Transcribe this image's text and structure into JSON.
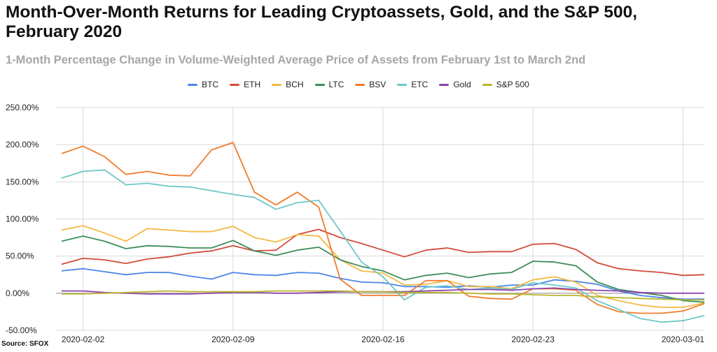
{
  "title": "Month-Over-Month Returns for Leading Cryptoassets, Gold, and the S&P 500, February 2020",
  "subtitle": "1-Month Percentage Change in Volume-Weighted Average Price of Assets from February 1st to March 2nd",
  "source": "Source: SFOX",
  "chart_data": {
    "type": "line",
    "title": "Month-Over-Month Returns for Leading Cryptoassets, Gold, and the S&P 500, February 2020",
    "subtitle": "1-Month Percentage Change in Volume-Weighted Average Price of Assets from February 1st to March 2nd",
    "x": [
      "2020-02-01",
      "2020-02-02",
      "2020-02-03",
      "2020-02-04",
      "2020-02-05",
      "2020-02-06",
      "2020-02-07",
      "2020-02-08",
      "2020-02-09",
      "2020-02-10",
      "2020-02-11",
      "2020-02-12",
      "2020-02-13",
      "2020-02-14",
      "2020-02-15",
      "2020-02-16",
      "2020-02-17",
      "2020-02-18",
      "2020-02-19",
      "2020-02-20",
      "2020-02-21",
      "2020-02-22",
      "2020-02-23",
      "2020-02-24",
      "2020-02-25",
      "2020-02-26",
      "2020-02-27",
      "2020-02-28",
      "2020-02-29",
      "2020-03-01",
      "2020-03-02"
    ],
    "x_ticks": [
      "2020-02-02",
      "2020-02-09",
      "2020-02-16",
      "2020-02-23",
      "2020-03-01"
    ],
    "y_ticks": [
      "250.00%",
      "200.00%",
      "150.00%",
      "100.00%",
      "50.00%",
      "0.00%",
      "-50.00%"
    ],
    "ylim": [
      -50,
      250
    ],
    "grid": "horizontal",
    "legend_position": "top",
    "series": [
      {
        "name": "BTC",
        "color": "#4a86e8",
        "values": [
          30,
          33,
          29,
          25,
          28,
          28,
          23,
          19,
          28,
          25,
          24,
          28,
          27,
          20,
          15,
          14,
          9,
          9,
          8,
          10,
          8,
          11,
          11,
          18,
          16,
          12,
          3,
          -3,
          -6,
          -8,
          -8
        ]
      },
      {
        "name": "ETH",
        "color": "#d44a3a",
        "values": [
          39,
          47,
          45,
          40,
          46,
          49,
          54,
          57,
          64,
          57,
          58,
          79,
          86,
          75,
          67,
          58,
          49,
          58,
          61,
          55,
          56,
          56,
          66,
          67,
          59,
          41,
          33,
          30,
          28,
          24,
          25
        ]
      },
      {
        "name": "BCH",
        "color": "#f4b942",
        "values": [
          85,
          91,
          81,
          70,
          87,
          85,
          83,
          83,
          90,
          75,
          69,
          79,
          77,
          45,
          30,
          27,
          11,
          12,
          17,
          9,
          9,
          6,
          18,
          22,
          15,
          -3,
          -10,
          -16,
          -19,
          -19,
          -13
        ]
      },
      {
        "name": "LTC",
        "color": "#3c8d57",
        "values": [
          70,
          77,
          70,
          60,
          64,
          63,
          61,
          61,
          71,
          57,
          51,
          58,
          62,
          45,
          36,
          30,
          18,
          24,
          27,
          21,
          26,
          28,
          43,
          42,
          37,
          15,
          5,
          1,
          -3,
          -10,
          -12
        ]
      },
      {
        "name": "BSV",
        "color": "#ef7d2c",
        "values": [
          188,
          198,
          184,
          160,
          164,
          159,
          158,
          193,
          203,
          136,
          119,
          136,
          116,
          19,
          -3,
          -3,
          -3,
          17,
          17,
          -4,
          -7,
          -8,
          6,
          6,
          4,
          -15,
          -25,
          -27,
          -27,
          -24,
          -14
        ]
      },
      {
        "name": "ETC",
        "color": "#6fc6c8",
        "values": [
          155,
          164,
          166,
          146,
          148,
          144,
          143,
          138,
          133,
          129,
          113,
          122,
          125,
          84,
          42,
          22,
          -9,
          8,
          10,
          5,
          7,
          5,
          14,
          11,
          7,
          -10,
          -22,
          -34,
          -39,
          -37,
          -30
        ]
      },
      {
        "name": "Gold",
        "color": "#8e44ad",
        "values": [
          3,
          3,
          1,
          0,
          -1,
          -1,
          -1,
          0,
          1,
          1,
          0,
          0,
          1,
          2,
          2,
          2,
          2,
          3,
          4,
          5,
          5,
          4,
          6,
          7,
          5,
          4,
          3,
          1,
          0,
          0,
          0
        ]
      },
      {
        "name": "S&P 500",
        "color": "#b9b52d",
        "values": [
          -1,
          -1,
          0,
          1,
          2,
          3,
          2,
          2,
          2,
          2,
          3,
          3,
          3,
          3,
          2,
          2,
          1,
          1,
          1,
          0,
          -1,
          -1,
          -2,
          -3,
          -3,
          -5,
          -6,
          -7,
          -8,
          -9,
          -9
        ]
      }
    ]
  }
}
